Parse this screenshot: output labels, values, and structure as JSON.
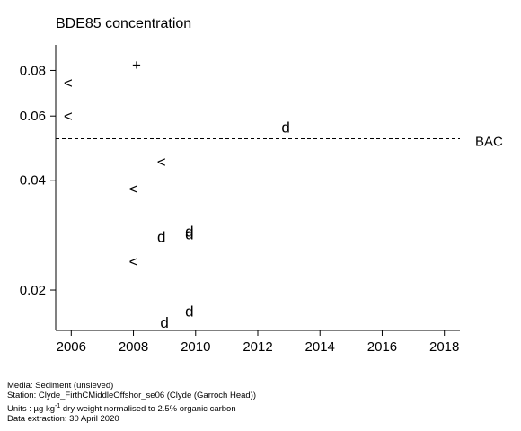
{
  "chart_data": {
    "type": "scatter",
    "title": "BDE85 concentration",
    "xlabel": "",
    "ylabel": "",
    "xlim": [
      2005.5,
      2018.5
    ],
    "x_ticks": [
      2006,
      2008,
      2010,
      2012,
      2014,
      2016,
      2018
    ],
    "y_scale": "log",
    "ylim": [
      0.0155,
      0.094
    ],
    "y_ticks": [
      0.02,
      0.04,
      0.06,
      0.08
    ],
    "y_tick_labels": [
      "0.02",
      "0.04",
      "0.06",
      "0.08"
    ],
    "grid": false,
    "reference_lines": [
      {
        "label": "BAC",
        "value": 0.052,
        "style": "dashed"
      }
    ],
    "points": [
      {
        "x": 2005.9,
        "y": 0.074,
        "marker": "<"
      },
      {
        "x": 2005.9,
        "y": 0.06,
        "marker": "<"
      },
      {
        "x": 2008.1,
        "y": 0.083,
        "marker": "+"
      },
      {
        "x": 2008.0,
        "y": 0.038,
        "marker": "<"
      },
      {
        "x": 2008.9,
        "y": 0.045,
        "marker": "<"
      },
      {
        "x": 2008.0,
        "y": 0.024,
        "marker": "<"
      },
      {
        "x": 2008.9,
        "y": 0.028,
        "marker": "d"
      },
      {
        "x": 2009.8,
        "y": 0.0285,
        "marker": "d"
      },
      {
        "x": 2009.8,
        "y": 0.029,
        "marker": "d"
      },
      {
        "x": 2009.8,
        "y": 0.0175,
        "marker": "d"
      },
      {
        "x": 2009.0,
        "y": 0.0163,
        "marker": "d"
      },
      {
        "x": 2012.9,
        "y": 0.056,
        "marker": "d"
      }
    ]
  },
  "footer": {
    "media": "Media: Sediment (unsieved)",
    "station": "Station: Clyde_FirthCMiddleOffshor_se06 (Clyde (Garroch Head))",
    "units_prefix": "Units : µg kg",
    "units_sup": "-1",
    "units_suffix": " dry weight normalised to 2.5% organic carbon",
    "extraction": "Data extraction: 30 April 2020"
  }
}
